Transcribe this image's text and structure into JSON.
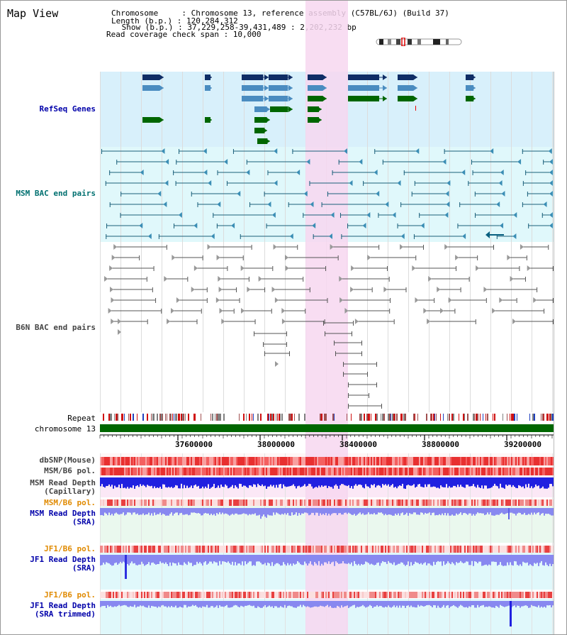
{
  "window": {
    "title": "Map View"
  },
  "header": {
    "line1": "Chromosome     : Chromosome 13, reference assembly (C57BL/6J) (Build 37)",
    "line2": "Length (b.p.) : 120,284,312",
    "line3": " Show (b.p.) : 37,229,258-39,431,489 : 2,202,232 bp",
    "line4": "Read coverage check span : 10,000"
  },
  "tracks": {
    "refseq": "RefSeq Genes",
    "msm_bac": "MSM BAC end pairs",
    "b6n_bac": "B6N BAC end pairs",
    "repeat": "Repeat",
    "chromosome": "chromosome 13",
    "dbsnp": "dbSNP(Mouse)",
    "msm_b6_pol_1": "MSM/B6 pol.",
    "msm_read_depth_cap_1": "MSM Read Depth",
    "msm_read_depth_cap_2": "(Capillary)",
    "msm_b6_pol_2": "MSM/B6 pol.",
    "msm_read_depth_sra_1": "MSM Read Depth",
    "msm_read_depth_sra_2": "(SRA)",
    "jf1_b6_pol_1": "JF1/B6 pol.",
    "jf1_read_depth_sra_1": "JF1 Read Depth",
    "jf1_read_depth_sra_2": "(SRA)",
    "jf1_b6_pol_2": "JF1/B6 pol.",
    "jf1_read_depth_trim_1": "JF1 Read Depth",
    "jf1_read_depth_trim_2": "(SRA trimmed)"
  },
  "ruler": {
    "ticks": [
      "37600000",
      "38000000",
      "38400000",
      "38800000",
      "39200000"
    ]
  },
  "colors": {
    "refseq_bg": "#d8f0fb",
    "msm_bac_bg": "#e0f8fb",
    "highlight": "#f7d7f0",
    "gene_dark": "#0f2d66",
    "gene_mid": "#4a8cc0",
    "gene_green": "#006600",
    "msm_line": "#1a5f7a",
    "b6n_line": "#555555",
    "chromosome_bar": "#006600",
    "depth_blue": "#2020e0",
    "depth_light": "#8888f0",
    "label_navy": "#0000aa",
    "label_teal": "#007070",
    "label_orange": "#e08a00",
    "label_gray": "#444444"
  }
}
